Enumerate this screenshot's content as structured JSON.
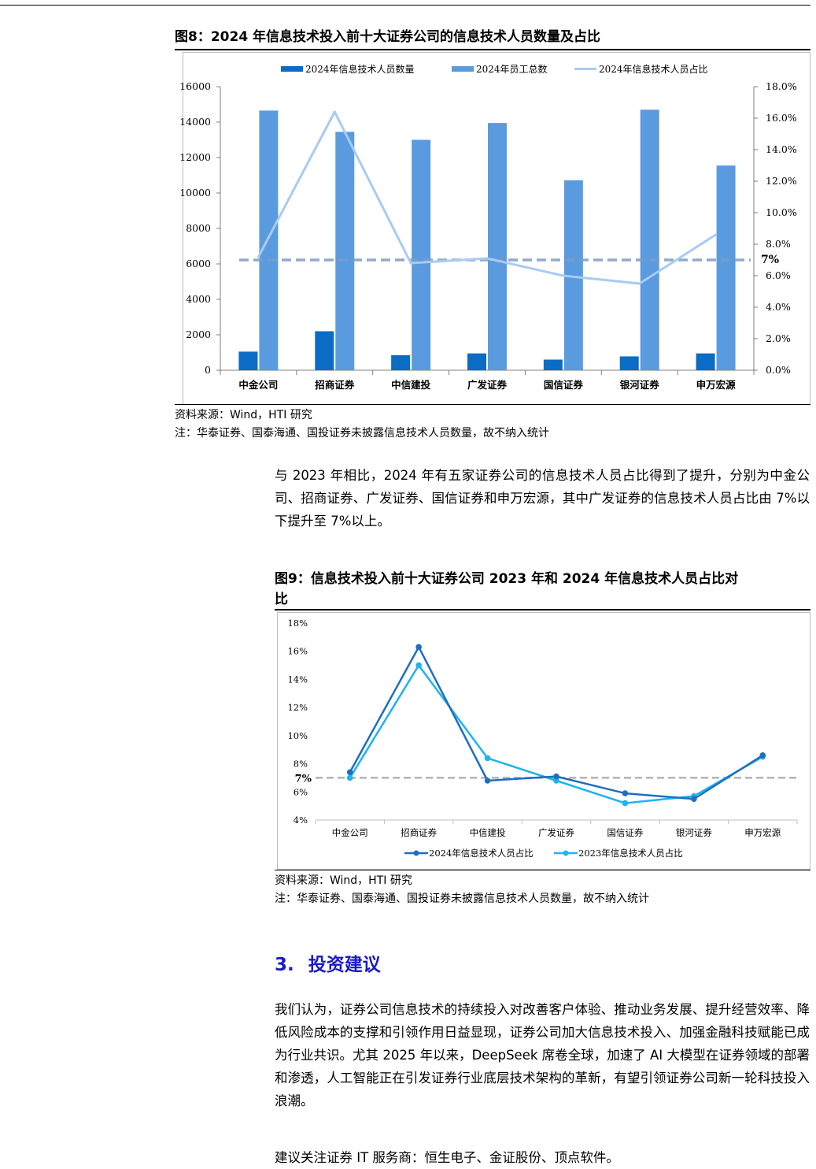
{
  "figure8": {
    "title": "图8：2024 年信息技术投入前十大证券公司的信息技术人员数量及占比",
    "source": "资料来源：Wind，HTI 研究",
    "note": "注：华泰证券、国泰海通、国投证券未披露信息技术人员数量，故不纳入统计"
  },
  "figure9": {
    "title_line1": "图9：信息技术投入前十大证券公司 2023 年和 2024 年信息技术人员占比对",
    "title_line2": "比",
    "source": "资料来源：Wind，HTI 研究",
    "note": "注：华泰证券、国泰海通、国投证券未披露信息技术人员数量，故不纳入统计"
  },
  "paragraph1": "与 2023 年相比，2024 年有五家证券公司的信息技术人员占比得到了提升，分别为中金公司、招商证券、广发证券、国信证券和申万宏源，其中广发证券的信息技术人员占比由 7%以下提升至 7%以上。",
  "section": {
    "number": "3.",
    "title": "投资建议"
  },
  "paragraph2": "我们认为，证券公司信息技术的持续投入对改善客户体验、推动业务发展、提升经营效率、降低风险成本的支撑和引领作用日益显现，证券公司加大信息技术投入、加强金融科技赋能已成为行业共识。尤其 2025 年以来，DeepSeek 席卷全球，加速了 AI 大模型在证券领域的部署和渗透，人工智能正在引发证券行业底层技术架构的革新，有望引领证券公司新一轮科技投入浪潮。",
  "paragraph3": "建议关注证券 IT 服务商：恒生电子、金证股份、顶点软件。",
  "chart_data": [
    {
      "type": "bar",
      "categories": [
        "中金公司",
        "招商证券",
        "中信建投",
        "广发证券",
        "国信证券",
        "银河证券",
        "申万宏源"
      ],
      "series": [
        {
          "name": "2024年信息技术人员数量",
          "kind": "bar",
          "axis": "left",
          "color": "#0a6cc4",
          "values": [
            1050,
            2200,
            850,
            950,
            600,
            780,
            950
          ]
        },
        {
          "name": "2024年员工总数",
          "kind": "bar",
          "axis": "left",
          "color": "#5a9be0",
          "values": [
            14650,
            13450,
            13000,
            13950,
            10720,
            14700,
            11550
          ]
        },
        {
          "name": "2024年信息技术人员占比",
          "kind": "line",
          "axis": "right",
          "color": "#a8cbf2",
          "values": [
            7.2,
            16.4,
            6.8,
            7.1,
            6.0,
            5.5,
            8.6
          ]
        }
      ],
      "left_axis": {
        "min": 0,
        "max": 16000,
        "ticks": [
          "0",
          "2000",
          "4000",
          "6000",
          "8000",
          "10000",
          "12000",
          "14000",
          "16000"
        ]
      },
      "right_axis": {
        "min": 0,
        "max": 18,
        "ticks": [
          "0.0%",
          "2.0%",
          "4.0%",
          "6.0%",
          "8.0%",
          "10.0%",
          "12.0%",
          "14.0%",
          "16.0%",
          "18.0%"
        ]
      },
      "reference_line": {
        "value": 7,
        "label": "7%",
        "color": "#7f9cc4",
        "style": "dashed"
      },
      "legend": "top"
    },
    {
      "type": "line",
      "categories": [
        "中金公司",
        "招商证券",
        "中信建投",
        "广发证券",
        "国信证券",
        "银河证券",
        "申万宏源"
      ],
      "series": [
        {
          "name": "2024年信息技术人员占比",
          "color": "#1f6fbf",
          "values": [
            7.4,
            16.3,
            6.8,
            7.1,
            5.9,
            5.5,
            8.6
          ]
        },
        {
          "name": "2023年信息技术人员占比",
          "color": "#1eb4ee",
          "values": [
            7.0,
            15.0,
            8.4,
            6.8,
            5.2,
            5.7,
            8.5
          ]
        }
      ],
      "y_axis": {
        "min": 4,
        "max": 18,
        "ticks": [
          "4%",
          "6%",
          "8%",
          "10%",
          "12%",
          "14%",
          "16%",
          "18%"
        ]
      },
      "reference_line": {
        "value": 7,
        "label": "7%",
        "color": "#b3b3b3",
        "style": "dashed"
      },
      "legend": "bottom"
    }
  ]
}
